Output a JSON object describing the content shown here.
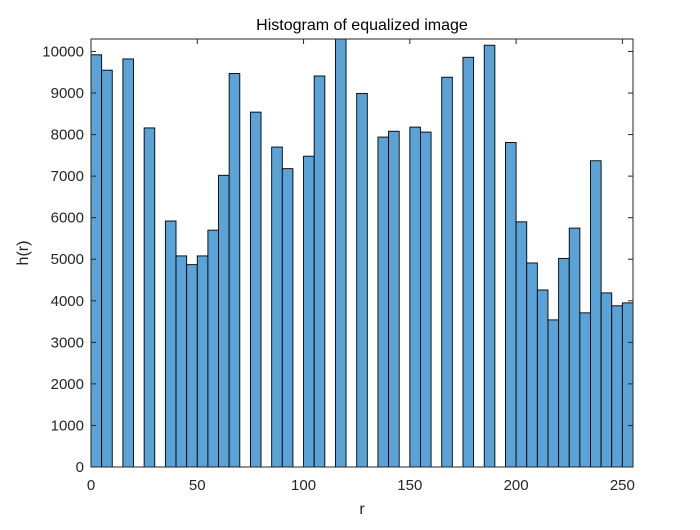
{
  "chart_data": {
    "type": "bar",
    "title": "Histogram of equalized image",
    "xlabel": "r",
    "ylabel": "h(r)",
    "xlim": [
      0,
      255
    ],
    "ylim": [
      0,
      10300
    ],
    "xticks": [
      0,
      50,
      100,
      150,
      200,
      250
    ],
    "yticks": [
      0,
      1000,
      2000,
      3000,
      4000,
      5000,
      6000,
      7000,
      8000,
      9000,
      10000
    ],
    "bin_width": 5,
    "bar_color": "#5ba3d6",
    "edge_color": "#000000",
    "grid": false,
    "bins": [
      {
        "x": 0,
        "value": 9920
      },
      {
        "x": 5,
        "value": 9550
      },
      {
        "x": 15,
        "value": 9820
      },
      {
        "x": 25,
        "value": 8160
      },
      {
        "x": 35,
        "value": 5920
      },
      {
        "x": 40,
        "value": 5080
      },
      {
        "x": 45,
        "value": 4870
      },
      {
        "x": 50,
        "value": 5080
      },
      {
        "x": 55,
        "value": 5700
      },
      {
        "x": 60,
        "value": 7020
      },
      {
        "x": 65,
        "value": 9470
      },
      {
        "x": 75,
        "value": 8540
      },
      {
        "x": 85,
        "value": 7700
      },
      {
        "x": 90,
        "value": 7180
      },
      {
        "x": 100,
        "value": 7480
      },
      {
        "x": 105,
        "value": 9410
      },
      {
        "x": 115,
        "value": 10300
      },
      {
        "x": 125,
        "value": 8990
      },
      {
        "x": 135,
        "value": 7940
      },
      {
        "x": 140,
        "value": 8080
      },
      {
        "x": 150,
        "value": 8180
      },
      {
        "x": 155,
        "value": 8060
      },
      {
        "x": 165,
        "value": 9380
      },
      {
        "x": 175,
        "value": 9860
      },
      {
        "x": 185,
        "value": 10150
      },
      {
        "x": 195,
        "value": 7810
      },
      {
        "x": 200,
        "value": 5900
      },
      {
        "x": 205,
        "value": 4910
      },
      {
        "x": 210,
        "value": 4260
      },
      {
        "x": 215,
        "value": 3540
      },
      {
        "x": 220,
        "value": 5020
      },
      {
        "x": 225,
        "value": 5750
      },
      {
        "x": 230,
        "value": 3710
      },
      {
        "x": 235,
        "value": 7370
      },
      {
        "x": 240,
        "value": 4190
      },
      {
        "x": 245,
        "value": 3880
      },
      {
        "x": 250,
        "value": 3950
      }
    ]
  }
}
